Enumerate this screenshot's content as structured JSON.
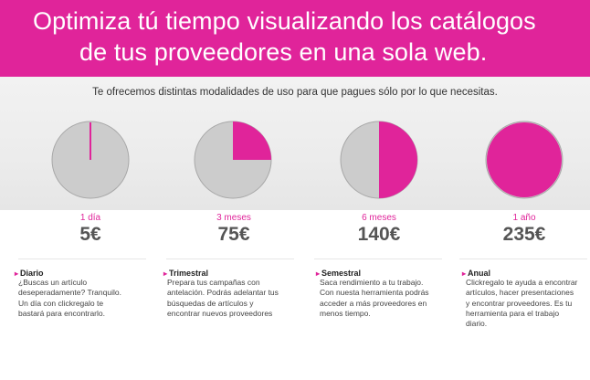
{
  "banner": {
    "line1": "Optimiza tú tiempo visualizando los catálogos",
    "line2": "de tus proveedores en una sola web."
  },
  "subtitle": "Te ofrecemos distintas modalidades de uso para que pagues sólo por lo que necesitas.",
  "colors": {
    "accent": "#e0249a",
    "pie_background": "#cccccc",
    "pie_border": "#a8a8a8"
  },
  "plans": [
    {
      "period": "1 día",
      "price": "5€",
      "title": "Diario",
      "fraction": 0.005,
      "desc": [
        "¿Buscas un artículo",
        "deseperadamente? Tranquilo.",
        "Un día con clickregalo te",
        "bastará para encontrarlo."
      ]
    },
    {
      "period": "3 meses",
      "price": "75€",
      "title": "Trimestral",
      "fraction": 0.25,
      "desc": [
        "Prepara tus campañas con",
        "antelación. Podrás adelantar tus",
        "búsquedas de artículos y",
        "encontrar nuevos proveedores"
      ]
    },
    {
      "period": "6 meses",
      "price": "140€",
      "title": "Semestral",
      "fraction": 0.5,
      "desc": [
        "Saca rendimiento a tu trabajo.",
        "Con nuesta herramienta podrás",
        "acceder a más proveedores en",
        "menos tiempo."
      ]
    },
    {
      "period": "1 año",
      "price": "235€",
      "title": "Anual",
      "fraction": 1.0,
      "desc": [
        "Clickregalo te ayuda a encontrar",
        "artículos, hacer presentaciones",
        "y encontrar proveedores. Es tu",
        "herramienta para el trabajo",
        "diario."
      ]
    }
  ]
}
